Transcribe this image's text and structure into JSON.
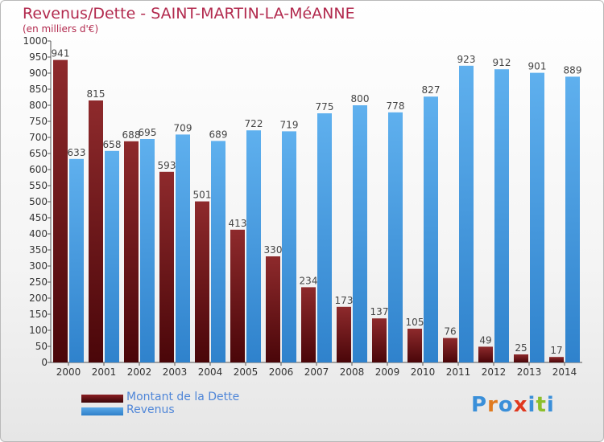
{
  "title": "Revenus/Dette - SAINT-MARTIN-LA-MéANNE",
  "subtitle": "(en milliers d'€)",
  "logo_text": "Proxiti",
  "colors": {
    "dette": "#8b1e22",
    "dette_dark": "#3a0508",
    "revenus": "#5aa8e8",
    "revenus_dark": "#2f80c9",
    "title": "#b22a4e",
    "legend_text": "#4f86d8"
  },
  "chart_data": {
    "type": "bar",
    "categories": [
      "2000",
      "2001",
      "2002",
      "2003",
      "2004",
      "2005",
      "2006",
      "2007",
      "2008",
      "2009",
      "2010",
      "2011",
      "2012",
      "2013",
      "2014"
    ],
    "series": [
      {
        "name": "Montant de la Dette",
        "values": [
          941,
          815,
          688,
          593,
          501,
          413,
          330,
          234,
          173,
          137,
          105,
          76,
          49,
          25,
          17
        ]
      },
      {
        "name": "Revenus",
        "values": [
          633,
          658,
          695,
          709,
          689,
          722,
          719,
          775,
          800,
          778,
          827,
          923,
          912,
          901,
          889
        ]
      }
    ],
    "ylim": [
      0,
      1000
    ],
    "ytick_step": 50,
    "yticks": [
      "0",
      "50",
      "100",
      "150",
      "200",
      "250",
      "300",
      "350",
      "400",
      "450",
      "500",
      "550",
      "600",
      "650",
      "700",
      "750",
      "800",
      "850",
      "900",
      "950",
      "1000"
    ],
    "grid": false,
    "legend_position": "bottom-left"
  }
}
